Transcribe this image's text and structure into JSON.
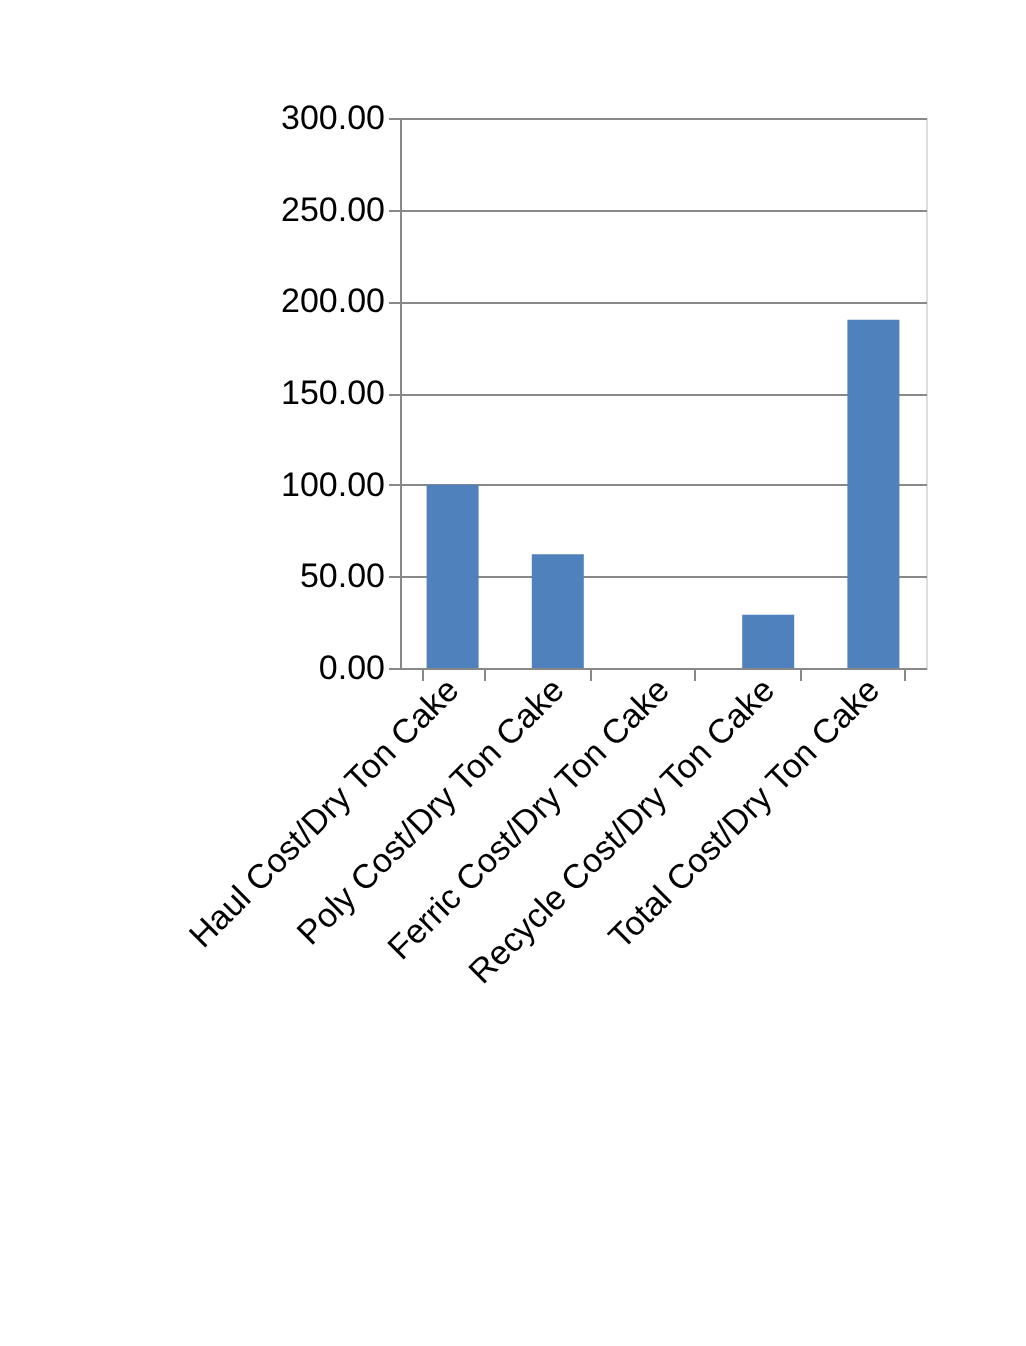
{
  "chart_data": {
    "type": "bar",
    "categories": [
      "Haul Cost/Dry Ton Cake",
      "Poly Cost/Dry Ton Cake",
      "Ferric Cost/Dry Ton Cake",
      "Recycle Cost/Dry Ton Cake",
      "Total Cost/Dry Ton Cake"
    ],
    "values": [
      100,
      62,
      0,
      29,
      190
    ],
    "color": "#4f81bd",
    "ylim": [
      0,
      300
    ],
    "yticks": [
      {
        "value": 0,
        "label": "0.00"
      },
      {
        "value": 50,
        "label": "50.00"
      },
      {
        "value": 100,
        "label": "100.00"
      },
      {
        "value": 150,
        "label": "150.00"
      },
      {
        "value": 200,
        "label": "200.00"
      },
      {
        "value": 250,
        "label": "250.00"
      },
      {
        "value": 300,
        "label": "300.00"
      }
    ],
    "grid": "y"
  }
}
